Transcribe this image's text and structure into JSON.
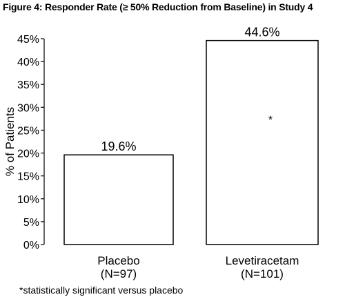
{
  "chart_data": {
    "type": "bar",
    "title": "Figure 4: Responder Rate (≥ 50% Reduction from Baseline) in Study 4",
    "ylabel": "% of Patients",
    "xlabel": "",
    "ylim": [
      0,
      45
    ],
    "yticks": [
      0,
      5,
      10,
      15,
      20,
      25,
      30,
      35,
      40,
      45
    ],
    "ytick_labels": [
      "0%",
      "5%",
      "10%",
      "15%",
      "20%",
      "25%",
      "30%",
      "35%",
      "40%",
      "45%"
    ],
    "categories": [
      {
        "name": "Placebo",
        "n": "(N=97)"
      },
      {
        "name": "Levetiracetam",
        "n": "(N=101)"
      }
    ],
    "values": [
      19.6,
      44.6
    ],
    "value_labels": [
      "19.6%",
      "44.6%"
    ],
    "bar_marks": [
      "",
      "*"
    ],
    "grid": false,
    "bar_fill": "#ffffff",
    "bar_stroke": "#000000"
  },
  "footnote": "*statistically significant versus placebo"
}
